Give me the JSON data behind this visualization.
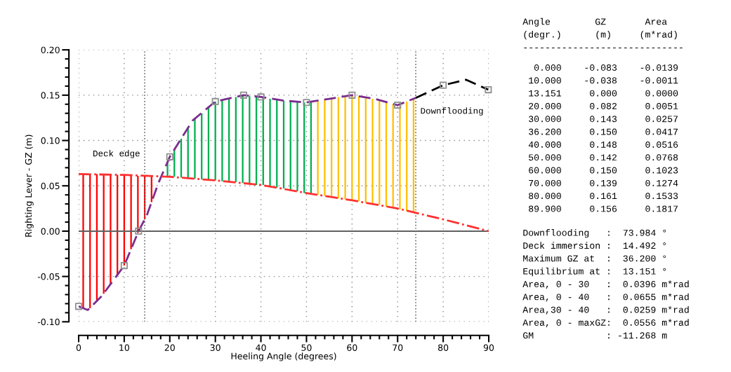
{
  "chart_data": {
    "type": "line",
    "xlabel": "Heeling Angle (degrees)",
    "ylabel": "Righting Lever - GZ (m)",
    "xlim": [
      0,
      90
    ],
    "xticks": [
      0,
      10,
      20,
      30,
      40,
      50,
      60,
      70,
      80,
      90
    ],
    "ylim": [
      -0.1,
      0.2
    ],
    "yticks": [
      {
        "value": -0.1,
        "label": "-0.10"
      },
      {
        "value": -0.05,
        "label": "-0.05"
      },
      {
        "value": 0,
        "label": "0.00"
      },
      {
        "value": 0.05,
        "label": "0.05"
      },
      {
        "value": 0.1,
        "label": "0.10"
      },
      {
        "value": 0.15,
        "label": "0.15"
      },
      {
        "value": 0.2,
        "label": "0.20"
      }
    ],
    "grid": true,
    "line_style": "dashed",
    "legend": false,
    "series": [
      {
        "type": "bar",
        "color": "#ff0000",
        "x": [
          1,
          2.5,
          4,
          5.5,
          7,
          8.5,
          10,
          11.5,
          13,
          14.5,
          16
        ],
        "base": [
          -0.085,
          -0.085,
          -0.077,
          -0.069,
          -0.058,
          -0.048,
          -0.038,
          -0.02,
          -0.002,
          0.013,
          0.032
        ],
        "values": [
          0.148,
          0.148,
          0.14,
          0.131,
          0.12,
          0.11,
          0.1,
          0.082,
          0.063,
          0.048,
          0.029
        ]
      },
      {
        "type": "bar",
        "color": "#00b050",
        "x": [
          19.5,
          21,
          22.5,
          24,
          25.5,
          27,
          28.5,
          30,
          31.5,
          33,
          34.5,
          36,
          37.5,
          39,
          40.5,
          42,
          43.5,
          45,
          46.5,
          48,
          49.5,
          51
        ],
        "base": [
          0.06,
          0.06,
          0.059,
          0.058,
          0.058,
          0.057,
          0.057,
          0.056,
          0.055,
          0.054,
          0.054,
          0.053,
          0.052,
          0.051,
          0.051,
          0.049,
          0.048,
          0.047,
          0.045,
          0.044,
          0.042,
          0.041
        ],
        "values": [
          0.016,
          0.03,
          0.043,
          0.056,
          0.066,
          0.073,
          0.08,
          0.087,
          0.09,
          0.092,
          0.094,
          0.097,
          0.097,
          0.097,
          0.097,
          0.097,
          0.097,
          0.097,
          0.098,
          0.099,
          0.1,
          0.102
        ]
      },
      {
        "type": "bar",
        "color": "#ffc000",
        "x": [
          52.5,
          54,
          55.5,
          57,
          58.5,
          60,
          61.5,
          63,
          64.5,
          66,
          67.5,
          69,
          70.5,
          72,
          73.5
        ],
        "base": [
          0.04,
          0.039,
          0.038,
          0.036,
          0.035,
          0.034,
          0.033,
          0.031,
          0.03,
          0.029,
          0.027,
          0.026,
          0.024,
          0.022,
          0.021
        ],
        "values": [
          0.104,
          0.106,
          0.108,
          0.112,
          0.114,
          0.116,
          0.116,
          0.117,
          0.116,
          0.116,
          0.116,
          0.114,
          0.116,
          0.121,
          0.125
        ]
      },
      {
        "color": "#7b2d8e",
        "x": [
          0,
          2,
          5,
          7.5,
          10,
          13.151,
          15,
          17.5,
          20,
          25,
          30,
          36.2,
          40,
          45,
          50,
          55,
          60,
          65,
          70,
          73.984
        ],
        "values": [
          -0.083,
          -0.087,
          -0.072,
          -0.055,
          -0.038,
          0.0,
          0.018,
          0.053,
          0.082,
          0.122,
          0.143,
          0.15,
          0.148,
          0.144,
          0.142,
          0.146,
          0.15,
          0.146,
          0.139,
          0.147
        ]
      },
      {
        "color": "#000000",
        "x": [
          73.984,
          80,
          85,
          89.9
        ],
        "values": [
          0.147,
          0.161,
          0.167,
          0.156
        ]
      },
      {
        "color": "#ff3030",
        "line_style": "dashdot",
        "x": [
          0,
          10,
          20,
          30,
          40,
          50,
          60,
          70,
          80,
          90
        ],
        "values": [
          0.063,
          0.062,
          0.06,
          0.056,
          0.051,
          0.042,
          0.034,
          0.025,
          0.013,
          0.0
        ]
      },
      {
        "type": "scatter",
        "color": "#909090",
        "marker": "square",
        "x": [
          0,
          10,
          13.151,
          20,
          30,
          36.2,
          40,
          50,
          60,
          70,
          80,
          89.9
        ],
        "values": [
          -0.083,
          -0.038,
          0.0,
          0.082,
          0.143,
          0.15,
          0.148,
          0.142,
          0.15,
          0.139,
          0.161,
          0.156
        ]
      }
    ],
    "ref_lines": [
      {
        "axis": "y",
        "value": 0,
        "label": null,
        "color": "#606060",
        "line_style": "solid"
      },
      {
        "axis": "x",
        "value": 14.492,
        "label": "Deck edge",
        "color": "#707070",
        "line_style": "dotted"
      },
      {
        "axis": "x",
        "value": 73.984,
        "label": "Downflooding",
        "color": "#707070",
        "line_style": "dotted"
      }
    ],
    "annotations": [
      "Angle        GZ       Area",
      "(degr.)      (m)     (m*rad)",
      "-----------------------------",
      "  0.000    -0.083    -0.0139",
      " 10.000    -0.038    -0.0011",
      " 13.151     0.000     0.0000",
      " 20.000     0.082     0.0051",
      " 30.000     0.143     0.0257",
      " 36.200     0.150     0.0417",
      " 40.000     0.148     0.0516",
      " 50.000     0.142     0.0768",
      " 60.000     0.150     0.1023",
      " 70.000     0.139     0.1274",
      " 80.000     0.161     0.1533",
      " 89.900     0.156     0.1817",
      "Downflooding   :  73.984 °",
      "Deck immersion :  14.492 °",
      "Maximum GZ at  :  36.200 °",
      "Equilibrium at :  13.151 °",
      "Area, 0 - 30   :  0.0396 m*rad",
      "Area, 0 - 40   :  0.0655 m*rad",
      "Area,30 - 40   :  0.0259 m*rad",
      "Area, 0 - maxGZ:  0.0556 m*rad",
      "GM             : -11.268 m"
    ]
  }
}
